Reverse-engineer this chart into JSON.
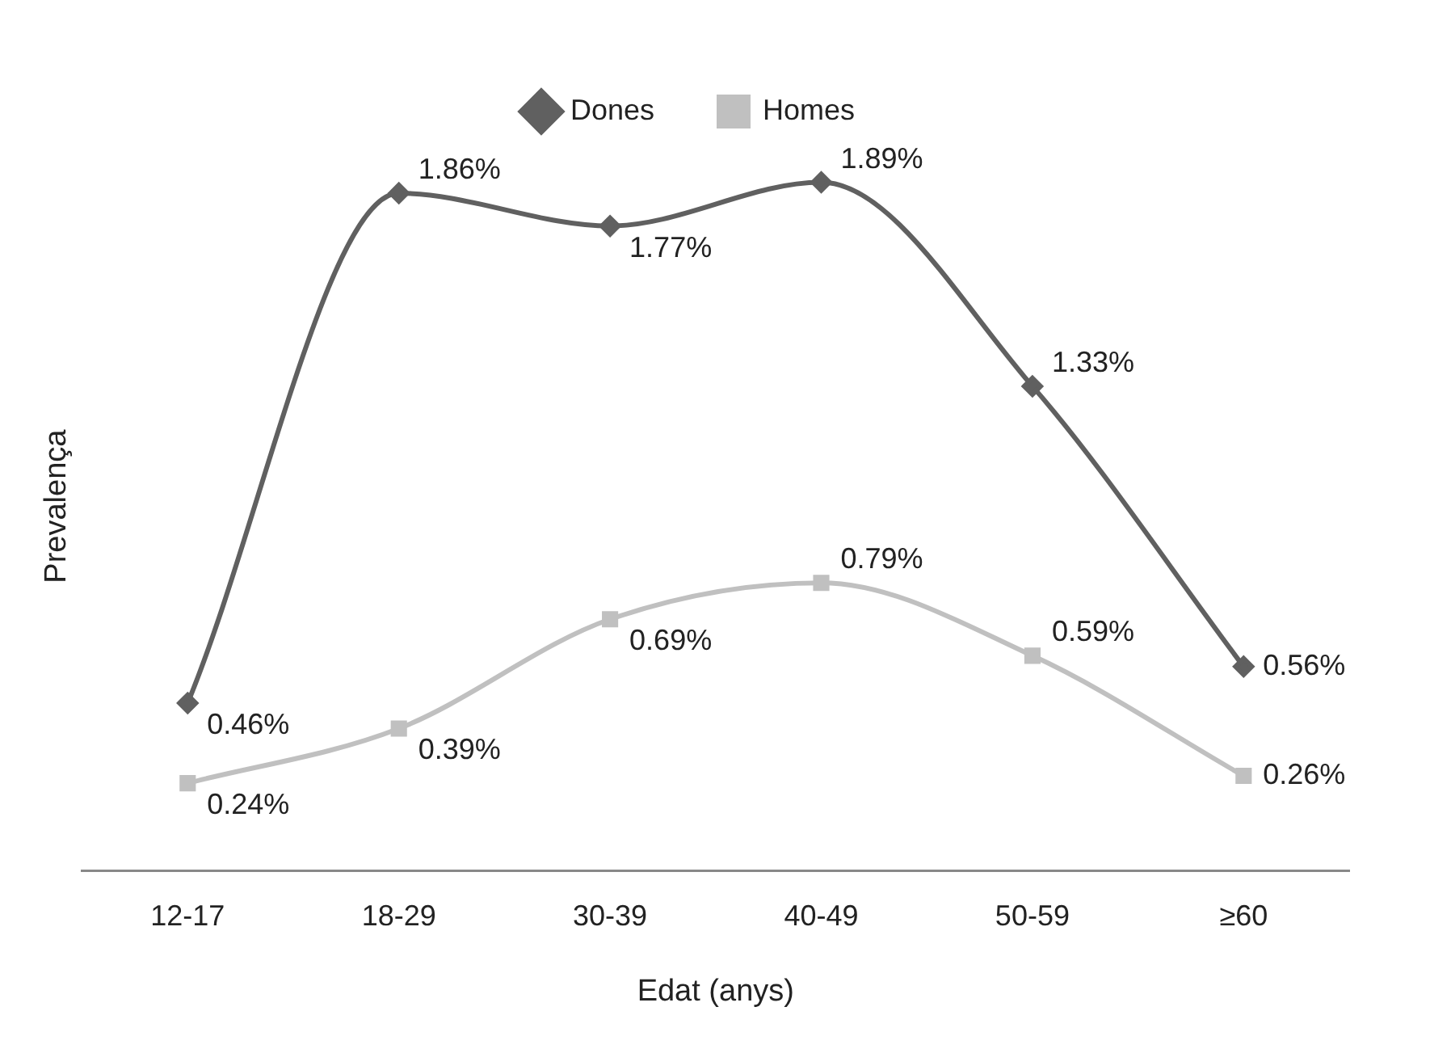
{
  "chart_data": {
    "type": "line",
    "xlabel": "Edat (anys)",
    "ylabel": "Prevalença",
    "categories": [
      "12-17",
      "18-29",
      "30-39",
      "40-49",
      "50-59",
      "≥60"
    ],
    "tick_labels": "x",
    "grid": false,
    "legend": "top",
    "series": [
      {
        "name": "Dones",
        "color": "#606060",
        "marker": "diamond",
        "values": [
          0.46,
          1.86,
          1.77,
          1.89,
          1.33,
          0.56
        ],
        "value_labels": [
          "0.46%",
          "1.86%",
          "1.77%",
          "1.89%",
          "1.33%",
          "0.56%"
        ]
      },
      {
        "name": "Homes",
        "color": "#c0c0c0",
        "marker": "square",
        "values": [
          0.24,
          0.39,
          0.69,
          0.79,
          0.59,
          0.26
        ],
        "value_labels": [
          "0.24%",
          "0.39%",
          "0.69%",
          "0.79%",
          "0.59%",
          "0.26%"
        ]
      }
    ]
  }
}
